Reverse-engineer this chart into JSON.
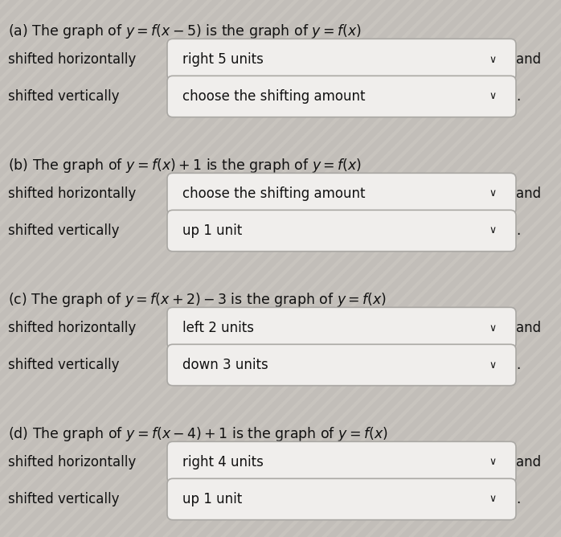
{
  "background_color": "#c8c4be",
  "box_color": "#f0eeec",
  "box_border_color": "#aaa8a4",
  "text_color": "#111111",
  "font_size_title": 12.5,
  "font_size_label": 12.0,
  "font_size_box": 12.0,
  "sections": [
    {
      "label_plain": "(a) The graph of ",
      "label_math1": "$y = f(x-5)$",
      "label_mid": " is the graph of ",
      "label_math2": "$y = f(x)$",
      "row1_left": "shifted horizontally",
      "row1_box": "right 5 units",
      "row1_has_chevron": true,
      "row1_suffix": "and",
      "row2_left": "shifted vertically",
      "row2_box": "choose the shifting amount",
      "row2_has_chevron": true,
      "row2_suffix": "."
    },
    {
      "label_plain": "(b) The graph of ",
      "label_math1": "$y = f(x)+1$",
      "label_mid": " is the graph of ",
      "label_math2": "$y = f(x)$",
      "row1_left": "shifted horizontally",
      "row1_box": "choose the shifting amount",
      "row1_has_chevron": true,
      "row1_suffix": "and",
      "row2_left": "shifted vertically",
      "row2_box": "up 1 unit",
      "row2_has_chevron": true,
      "row2_suffix": "."
    },
    {
      "label_plain": "(c) The graph of ",
      "label_math1": "$y = f(x+2)-3$",
      "label_mid": " is the graph of ",
      "label_math2": "$y = f(x)$",
      "row1_left": "shifted horizontally",
      "row1_box": "left 2 units",
      "row1_has_chevron": true,
      "row1_suffix": "and",
      "row2_left": "shifted vertically",
      "row2_box": "down 3 units",
      "row2_has_chevron": true,
      "row2_suffix": "."
    },
    {
      "label_plain": "(d) The graph of ",
      "label_math1": "$y = f(x-4)+1$",
      "label_mid": " is the graph of ",
      "label_math2": "$y = f(x)$",
      "row1_left": "shifted horizontally",
      "row1_box": "right 4 units",
      "row1_has_chevron": true,
      "row1_suffix": "and",
      "row2_left": "shifted vertically",
      "row2_box": "up 1 unit",
      "row2_has_chevron": true,
      "row2_suffix": "."
    }
  ],
  "stripe_color": "#b8b4b0",
  "stripe_alpha": 0.5
}
